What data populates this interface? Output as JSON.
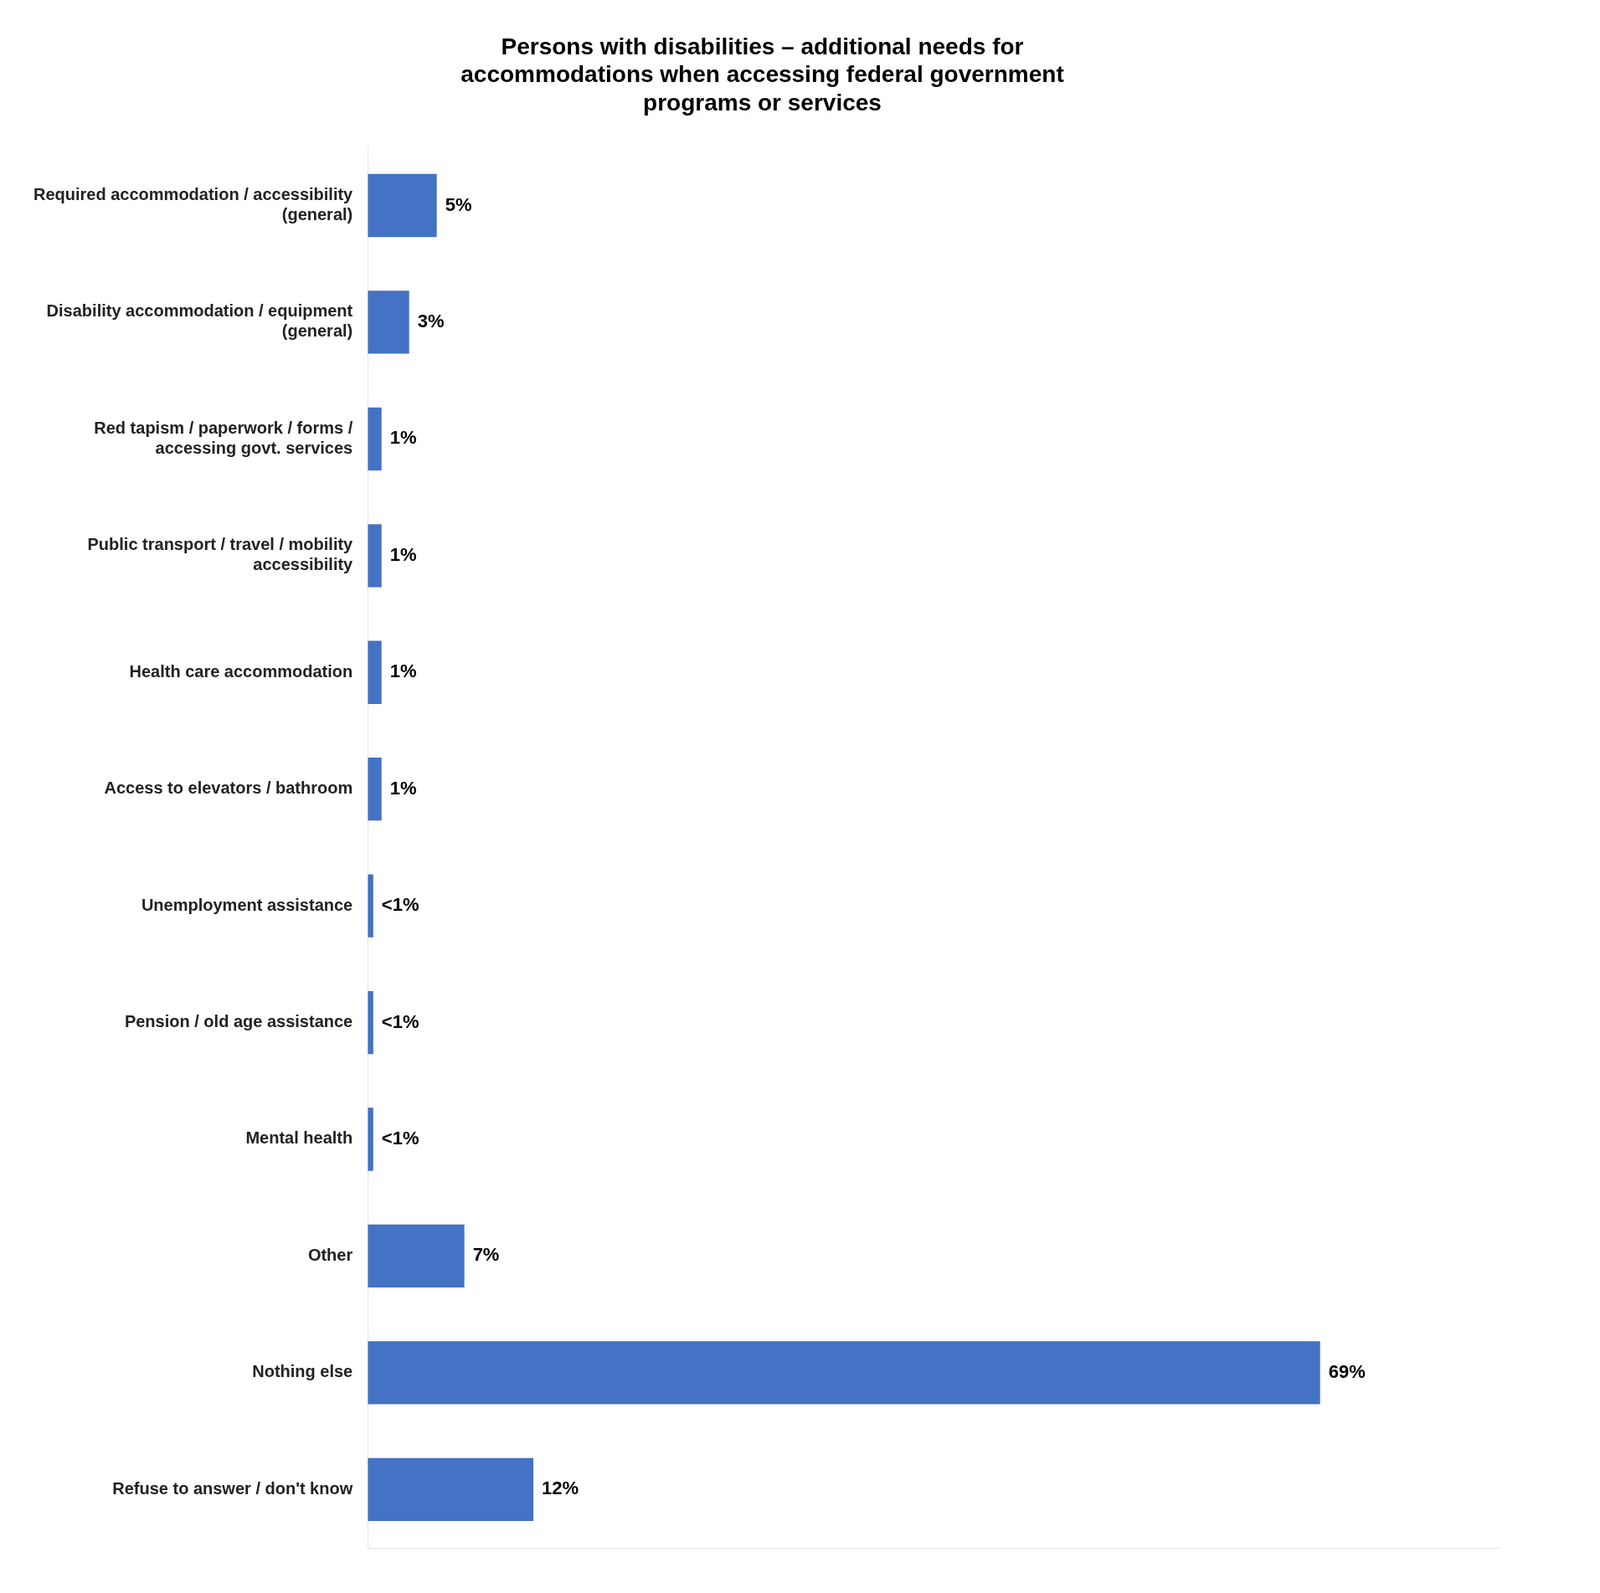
{
  "chart_data": {
    "type": "bar",
    "orientation": "horizontal",
    "title": "Persons with disabilities – additional needs for\naccommodations when accessing federal government\nprograms or services",
    "categories": [
      "Required accommodation / accessibility\n(general)",
      "Disability accommodation / equipment\n(general)",
      "Red tapism / paperwork / forms /\naccessing govt. services",
      "Public transport / travel / mobility\naccessibility",
      "Health care accommodation",
      "Access to elevators / bathroom",
      "Unemployment assistance",
      "Pension / old age assistance",
      "Mental health",
      "Other",
      "Nothing else",
      "Refuse to answer / don't know"
    ],
    "values": [
      5,
      3,
      1,
      1,
      1,
      1,
      0.4,
      0.4,
      0.4,
      7,
      69,
      12
    ],
    "value_labels": [
      "5%",
      "3%",
      "1%",
      "1%",
      "1%",
      "1%",
      "<1%",
      "<1%",
      "<1%",
      "7%",
      "69%",
      "12%"
    ],
    "data_labels": true,
    "color": "#4472C4",
    "xlim": [
      0,
      82
    ],
    "tick_labels": "y",
    "grid": false
  }
}
